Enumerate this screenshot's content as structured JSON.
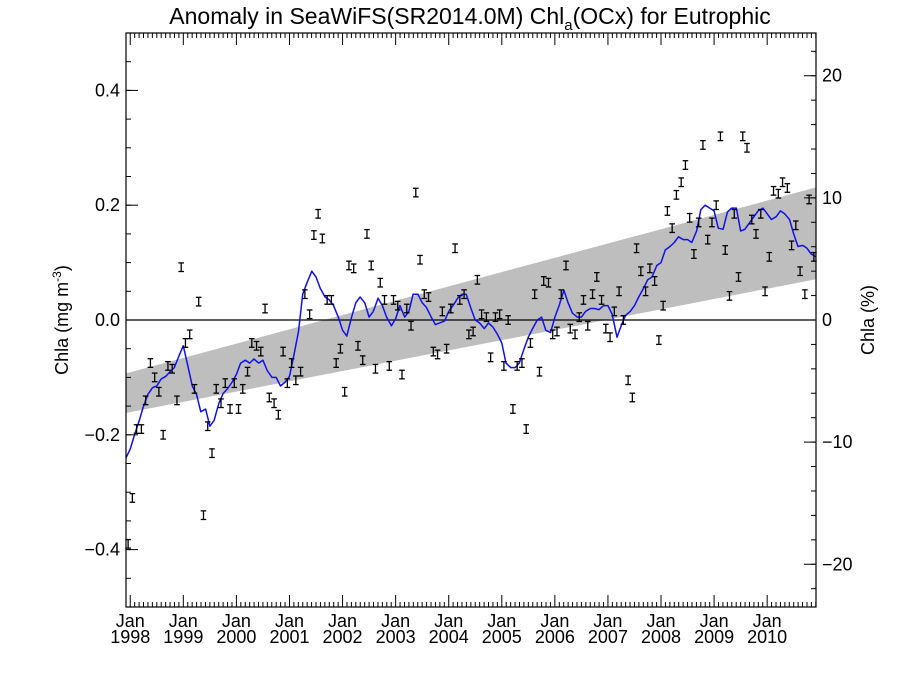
{
  "chart_data": {
    "type": "line",
    "title": {
      "main": "Anomaly in SeaWiFS(SR2014.0M) Chl",
      "sub": "a",
      "tail": "(OCx) for Eutrophic"
    },
    "ylabel_left": {
      "main": "Chla (mg m",
      "sup": "-3",
      "tail": ")"
    },
    "ylabel_right": "Chla (%)",
    "xlim": [
      1997.92,
      2010.92
    ],
    "ylim": [
      -0.5,
      0.5
    ],
    "ylim_right": [
      -23.5,
      23.5
    ],
    "grid": false,
    "legend": "none",
    "colors": {
      "line": "#1010ee",
      "band": "#bebebe",
      "markers": "#000000",
      "zero_line": "#000000"
    },
    "xticks": [
      {
        "x": 1998.0,
        "month": "Jan",
        "year": "1998"
      },
      {
        "x": 1999.0,
        "month": "Jan",
        "year": "1999"
      },
      {
        "x": 2000.0,
        "month": "Jan",
        "year": "2000"
      },
      {
        "x": 2001.0,
        "month": "Jan",
        "year": "2001"
      },
      {
        "x": 2002.0,
        "month": "Jan",
        "year": "2002"
      },
      {
        "x": 2003.0,
        "month": "Jan",
        "year": "2003"
      },
      {
        "x": 2004.0,
        "month": "Jan",
        "year": "2004"
      },
      {
        "x": 2005.0,
        "month": "Jan",
        "year": "2005"
      },
      {
        "x": 2006.0,
        "month": "Jan",
        "year": "2006"
      },
      {
        "x": 2007.0,
        "month": "Jan",
        "year": "2007"
      },
      {
        "x": 2008.0,
        "month": "Jan",
        "year": "2008"
      },
      {
        "x": 2009.0,
        "month": "Jan",
        "year": "2009"
      },
      {
        "x": 2010.0,
        "month": "Jan",
        "year": "2010"
      }
    ],
    "yticks_left": [
      {
        "v": 0.4,
        "label": "0.4"
      },
      {
        "v": 0.2,
        "label": "0.2"
      },
      {
        "v": 0.0,
        "label": "0.0"
      },
      {
        "v": -0.2,
        "label": "−0.2"
      },
      {
        "v": -0.4,
        "label": "−0.4"
      }
    ],
    "yticks_right": [
      {
        "v": 20,
        "label": "20"
      },
      {
        "v": 10,
        "label": "10"
      },
      {
        "v": 0,
        "label": "0"
      },
      {
        "v": -10,
        "label": "−10"
      },
      {
        "v": -20,
        "label": "−20"
      }
    ],
    "band": {
      "x": [
        1997.92,
        2010.92
      ],
      "lower": [
        -0.162,
        0.071
      ],
      "upper": [
        -0.093,
        0.231
      ]
    },
    "points": [
      [
        1997.96,
        -0.39
      ],
      [
        1998.04,
        -0.31
      ],
      [
        1998.12,
        -0.19
      ],
      [
        1998.21,
        -0.19
      ],
      [
        1998.29,
        -0.14
      ],
      [
        1998.38,
        -0.075
      ],
      [
        1998.46,
        -0.1
      ],
      [
        1998.54,
        -0.125
      ],
      [
        1998.62,
        -0.2
      ],
      [
        1998.71,
        -0.08
      ],
      [
        1998.79,
        -0.085
      ],
      [
        1998.88,
        -0.14
      ],
      [
        1998.96,
        0.092
      ],
      [
        1999.04,
        -0.04
      ],
      [
        1999.12,
        -0.025
      ],
      [
        1999.21,
        -0.12
      ],
      [
        1999.29,
        0.032
      ],
      [
        1999.38,
        -0.34
      ],
      [
        1999.46,
        -0.185
      ],
      [
        1999.54,
        -0.232
      ],
      [
        1999.62,
        -0.12
      ],
      [
        1999.71,
        -0.145
      ],
      [
        1999.79,
        -0.11
      ],
      [
        1999.88,
        -0.155
      ],
      [
        1999.96,
        -0.11
      ],
      [
        2000.04,
        -0.155
      ],
      [
        2000.12,
        -0.12
      ],
      [
        2000.21,
        -0.09
      ],
      [
        2000.29,
        -0.04
      ],
      [
        2000.38,
        -0.045
      ],
      [
        2000.46,
        -0.055
      ],
      [
        2000.54,
        0.02
      ],
      [
        2000.62,
        -0.135
      ],
      [
        2000.71,
        -0.145
      ],
      [
        2000.79,
        -0.165
      ],
      [
        2000.88,
        -0.055
      ],
      [
        2000.96,
        -0.11
      ],
      [
        2001.04,
        -0.075
      ],
      [
        2001.12,
        -0.105
      ],
      [
        2001.21,
        -0.09
      ],
      [
        2001.29,
        0.045
      ],
      [
        2001.38,
        0.01
      ],
      [
        2001.46,
        0.148
      ],
      [
        2001.54,
        0.185
      ],
      [
        2001.62,
        0.142
      ],
      [
        2001.71,
        0.035
      ],
      [
        2001.79,
        0.035
      ],
      [
        2001.88,
        -0.075
      ],
      [
        2001.96,
        -0.05
      ],
      [
        2002.04,
        -0.125
      ],
      [
        2002.12,
        0.095
      ],
      [
        2002.21,
        0.09
      ],
      [
        2002.29,
        -0.045
      ],
      [
        2002.38,
        -0.07
      ],
      [
        2002.46,
        0.15
      ],
      [
        2002.54,
        0.095
      ],
      [
        2002.62,
        -0.085
      ],
      [
        2002.71,
        0.065
      ],
      [
        2002.79,
        0.035
      ],
      [
        2002.88,
        -0.08
      ],
      [
        2002.96,
        0.035
      ],
      [
        2003.04,
        0.025
      ],
      [
        2003.12,
        -0.095
      ],
      [
        2003.21,
        0.02
      ],
      [
        2003.29,
        -0.01
      ],
      [
        2003.38,
        0.222
      ],
      [
        2003.46,
        0.105
      ],
      [
        2003.54,
        0.045
      ],
      [
        2003.62,
        0.04
      ],
      [
        2003.71,
        -0.055
      ],
      [
        2003.79,
        -0.06
      ],
      [
        2003.88,
        0.015
      ],
      [
        2003.96,
        -0.05
      ],
      [
        2004.04,
        0.02
      ],
      [
        2004.12,
        0.125
      ],
      [
        2004.21,
        0.035
      ],
      [
        2004.29,
        0.045
      ],
      [
        2004.38,
        -0.025
      ],
      [
        2004.46,
        -0.02
      ],
      [
        2004.54,
        0.07
      ],
      [
        2004.62,
        0.01
      ],
      [
        2004.71,
        0.005
      ],
      [
        2004.79,
        -0.065
      ],
      [
        2004.88,
        0.005
      ],
      [
        2004.96,
        0.01
      ],
      [
        2005.04,
        -0.08
      ],
      [
        2005.12,
        0.0
      ],
      [
        2005.21,
        -0.155
      ],
      [
        2005.29,
        -0.08
      ],
      [
        2005.38,
        -0.075
      ],
      [
        2005.46,
        -0.19
      ],
      [
        2005.54,
        -0.04
      ],
      [
        2005.62,
        0.045
      ],
      [
        2005.71,
        -0.09
      ],
      [
        2005.79,
        0.068
      ],
      [
        2005.88,
        0.065
      ],
      [
        2005.96,
        -0.025
      ],
      [
        2006.04,
        -0.02
      ],
      [
        2006.12,
        0.045
      ],
      [
        2006.21,
        0.095
      ],
      [
        2006.29,
        -0.015
      ],
      [
        2006.38,
        -0.025
      ],
      [
        2006.46,
        0.005
      ],
      [
        2006.54,
        0.035
      ],
      [
        2006.62,
        -0.01
      ],
      [
        2006.71,
        0.045
      ],
      [
        2006.79,
        0.075
      ],
      [
        2006.88,
        0.035
      ],
      [
        2006.96,
        -0.015
      ],
      [
        2007.04,
        -0.03
      ],
      [
        2007.12,
        0.015
      ],
      [
        2007.21,
        0.05
      ],
      [
        2007.29,
        0.0
      ],
      [
        2007.38,
        -0.105
      ],
      [
        2007.46,
        -0.135
      ],
      [
        2007.54,
        0.125
      ],
      [
        2007.62,
        0.085
      ],
      [
        2007.71,
        0.05
      ],
      [
        2007.79,
        0.09
      ],
      [
        2007.88,
        0.068
      ],
      [
        2007.96,
        -0.035
      ],
      [
        2008.04,
        0.025
      ],
      [
        2008.12,
        0.19
      ],
      [
        2008.21,
        0.16
      ],
      [
        2008.29,
        0.218
      ],
      [
        2008.38,
        0.24
      ],
      [
        2008.46,
        0.27
      ],
      [
        2008.54,
        0.178
      ],
      [
        2008.62,
        0.115
      ],
      [
        2008.71,
        0.17
      ],
      [
        2008.79,
        0.305
      ],
      [
        2008.88,
        0.14
      ],
      [
        2008.96,
        0.17
      ],
      [
        2009.04,
        0.2
      ],
      [
        2009.12,
        0.32
      ],
      [
        2009.21,
        0.122
      ],
      [
        2009.29,
        0.042
      ],
      [
        2009.38,
        0.185
      ],
      [
        2009.46,
        0.075
      ],
      [
        2009.54,
        0.32
      ],
      [
        2009.62,
        0.3
      ],
      [
        2009.71,
        0.175
      ],
      [
        2009.79,
        0.15
      ],
      [
        2009.88,
        0.185
      ],
      [
        2009.96,
        0.05
      ],
      [
        2010.04,
        0.11
      ],
      [
        2010.12,
        0.225
      ],
      [
        2010.21,
        0.22
      ],
      [
        2010.29,
        0.24
      ],
      [
        2010.38,
        0.23
      ],
      [
        2010.46,
        0.13
      ],
      [
        2010.54,
        0.165
      ],
      [
        2010.62,
        0.085
      ],
      [
        2010.71,
        0.045
      ],
      [
        2010.79,
        0.21
      ],
      [
        2010.88,
        0.11
      ]
    ],
    "line": [
      [
        1997.92,
        -0.24
      ],
      [
        1998.0,
        -0.225
      ],
      [
        1998.08,
        -0.2
      ],
      [
        1998.17,
        -0.175
      ],
      [
        1998.25,
        -0.15
      ],
      [
        1998.33,
        -0.13
      ],
      [
        1998.42,
        -0.118
      ],
      [
        1998.5,
        -0.115
      ],
      [
        1998.58,
        -0.103
      ],
      [
        1998.67,
        -0.098
      ],
      [
        1998.75,
        -0.09
      ],
      [
        1998.83,
        -0.083
      ],
      [
        1998.92,
        -0.062
      ],
      [
        1999.0,
        -0.045
      ],
      [
        1999.08,
        -0.078
      ],
      [
        1999.17,
        -0.115
      ],
      [
        1999.25,
        -0.13
      ],
      [
        1999.33,
        -0.16
      ],
      [
        1999.42,
        -0.155
      ],
      [
        1999.5,
        -0.185
      ],
      [
        1999.58,
        -0.175
      ],
      [
        1999.67,
        -0.145
      ],
      [
        1999.75,
        -0.128
      ],
      [
        1999.83,
        -0.12
      ],
      [
        1999.92,
        -0.108
      ],
      [
        2000.0,
        -0.095
      ],
      [
        2000.08,
        -0.075
      ],
      [
        2000.17,
        -0.07
      ],
      [
        2000.25,
        -0.075
      ],
      [
        2000.33,
        -0.068
      ],
      [
        2000.42,
        -0.075
      ],
      [
        2000.5,
        -0.07
      ],
      [
        2000.58,
        -0.088
      ],
      [
        2000.67,
        -0.1
      ],
      [
        2000.75,
        -0.1
      ],
      [
        2000.83,
        -0.115
      ],
      [
        2000.92,
        -0.108
      ],
      [
        2001.0,
        -0.098
      ],
      [
        2001.08,
        -0.063
      ],
      [
        2001.17,
        -0.02
      ],
      [
        2001.25,
        0.045
      ],
      [
        2001.33,
        0.065
      ],
      [
        2001.42,
        0.085
      ],
      [
        2001.5,
        0.075
      ],
      [
        2001.58,
        0.055
      ],
      [
        2001.67,
        0.04
      ],
      [
        2001.75,
        0.035
      ],
      [
        2001.83,
        0.025
      ],
      [
        2001.92,
        0.005
      ],
      [
        2002.0,
        -0.018
      ],
      [
        2002.08,
        -0.028
      ],
      [
        2002.17,
        0.005
      ],
      [
        2002.25,
        0.03
      ],
      [
        2002.33,
        0.04
      ],
      [
        2002.42,
        0.03
      ],
      [
        2002.5,
        0.005
      ],
      [
        2002.58,
        0.015
      ],
      [
        2002.67,
        0.038
      ],
      [
        2002.75,
        0.025
      ],
      [
        2002.83,
        0.005
      ],
      [
        2002.92,
        -0.01
      ],
      [
        2003.0,
        0.002
      ],
      [
        2003.08,
        0.025
      ],
      [
        2003.17,
        0.005
      ],
      [
        2003.25,
        0.015
      ],
      [
        2003.33,
        0.045
      ],
      [
        2003.42,
        0.045
      ],
      [
        2003.5,
        0.03
      ],
      [
        2003.58,
        0.022
      ],
      [
        2003.67,
        0.005
      ],
      [
        2003.75,
        -0.008
      ],
      [
        2003.83,
        -0.005
      ],
      [
        2003.92,
        -0.002
      ],
      [
        2004.0,
        0.015
      ],
      [
        2004.08,
        0.025
      ],
      [
        2004.17,
        0.038
      ],
      [
        2004.25,
        0.045
      ],
      [
        2004.33,
        0.045
      ],
      [
        2004.42,
        0.02
      ],
      [
        2004.5,
        0.0
      ],
      [
        2004.58,
        -0.005
      ],
      [
        2004.67,
        -0.015
      ],
      [
        2004.75,
        -0.005
      ],
      [
        2004.83,
        -0.012
      ],
      [
        2004.92,
        -0.025
      ],
      [
        2005.0,
        -0.04
      ],
      [
        2005.08,
        -0.075
      ],
      [
        2005.17,
        -0.083
      ],
      [
        2005.25,
        -0.083
      ],
      [
        2005.33,
        -0.075
      ],
      [
        2005.42,
        -0.05
      ],
      [
        2005.5,
        -0.03
      ],
      [
        2005.58,
        -0.015
      ],
      [
        2005.67,
        0.0
      ],
      [
        2005.75,
        0.005
      ],
      [
        2005.83,
        -0.018
      ],
      [
        2005.92,
        -0.022
      ],
      [
        2006.0,
        0.005
      ],
      [
        2006.08,
        0.025
      ],
      [
        2006.17,
        0.052
      ],
      [
        2006.25,
        0.03
      ],
      [
        2006.33,
        0.012
      ],
      [
        2006.42,
        0.005
      ],
      [
        2006.5,
        0.005
      ],
      [
        2006.58,
        0.015
      ],
      [
        2006.67,
        0.02
      ],
      [
        2006.75,
        0.02
      ],
      [
        2006.83,
        0.018
      ],
      [
        2006.92,
        0.025
      ],
      [
        2007.0,
        0.025
      ],
      [
        2007.08,
        0.01
      ],
      [
        2007.17,
        -0.03
      ],
      [
        2007.25,
        -0.01
      ],
      [
        2007.33,
        0.008
      ],
      [
        2007.42,
        0.015
      ],
      [
        2007.5,
        0.025
      ],
      [
        2007.58,
        0.04
      ],
      [
        2007.67,
        0.055
      ],
      [
        2007.75,
        0.07
      ],
      [
        2007.83,
        0.075
      ],
      [
        2007.92,
        0.095
      ],
      [
        2008.0,
        0.1
      ],
      [
        2008.08,
        0.122
      ],
      [
        2008.17,
        0.128
      ],
      [
        2008.25,
        0.135
      ],
      [
        2008.33,
        0.145
      ],
      [
        2008.42,
        0.14
      ],
      [
        2008.5,
        0.14
      ],
      [
        2008.58,
        0.135
      ],
      [
        2008.67,
        0.155
      ],
      [
        2008.75,
        0.192
      ],
      [
        2008.83,
        0.2
      ],
      [
        2008.92,
        0.195
      ],
      [
        2009.0,
        0.19
      ],
      [
        2009.08,
        0.16
      ],
      [
        2009.17,
        0.158
      ],
      [
        2009.25,
        0.188
      ],
      [
        2009.33,
        0.195
      ],
      [
        2009.42,
        0.195
      ],
      [
        2009.5,
        0.155
      ],
      [
        2009.58,
        0.158
      ],
      [
        2009.67,
        0.17
      ],
      [
        2009.75,
        0.18
      ],
      [
        2009.83,
        0.19
      ],
      [
        2009.92,
        0.195
      ],
      [
        2010.0,
        0.185
      ],
      [
        2010.08,
        0.175
      ],
      [
        2010.17,
        0.18
      ],
      [
        2010.25,
        0.19
      ],
      [
        2010.33,
        0.185
      ],
      [
        2010.42,
        0.175
      ],
      [
        2010.5,
        0.15
      ],
      [
        2010.58,
        0.128
      ],
      [
        2010.67,
        0.13
      ],
      [
        2010.75,
        0.125
      ],
      [
        2010.83,
        0.115
      ],
      [
        2010.92,
        0.11
      ]
    ]
  }
}
